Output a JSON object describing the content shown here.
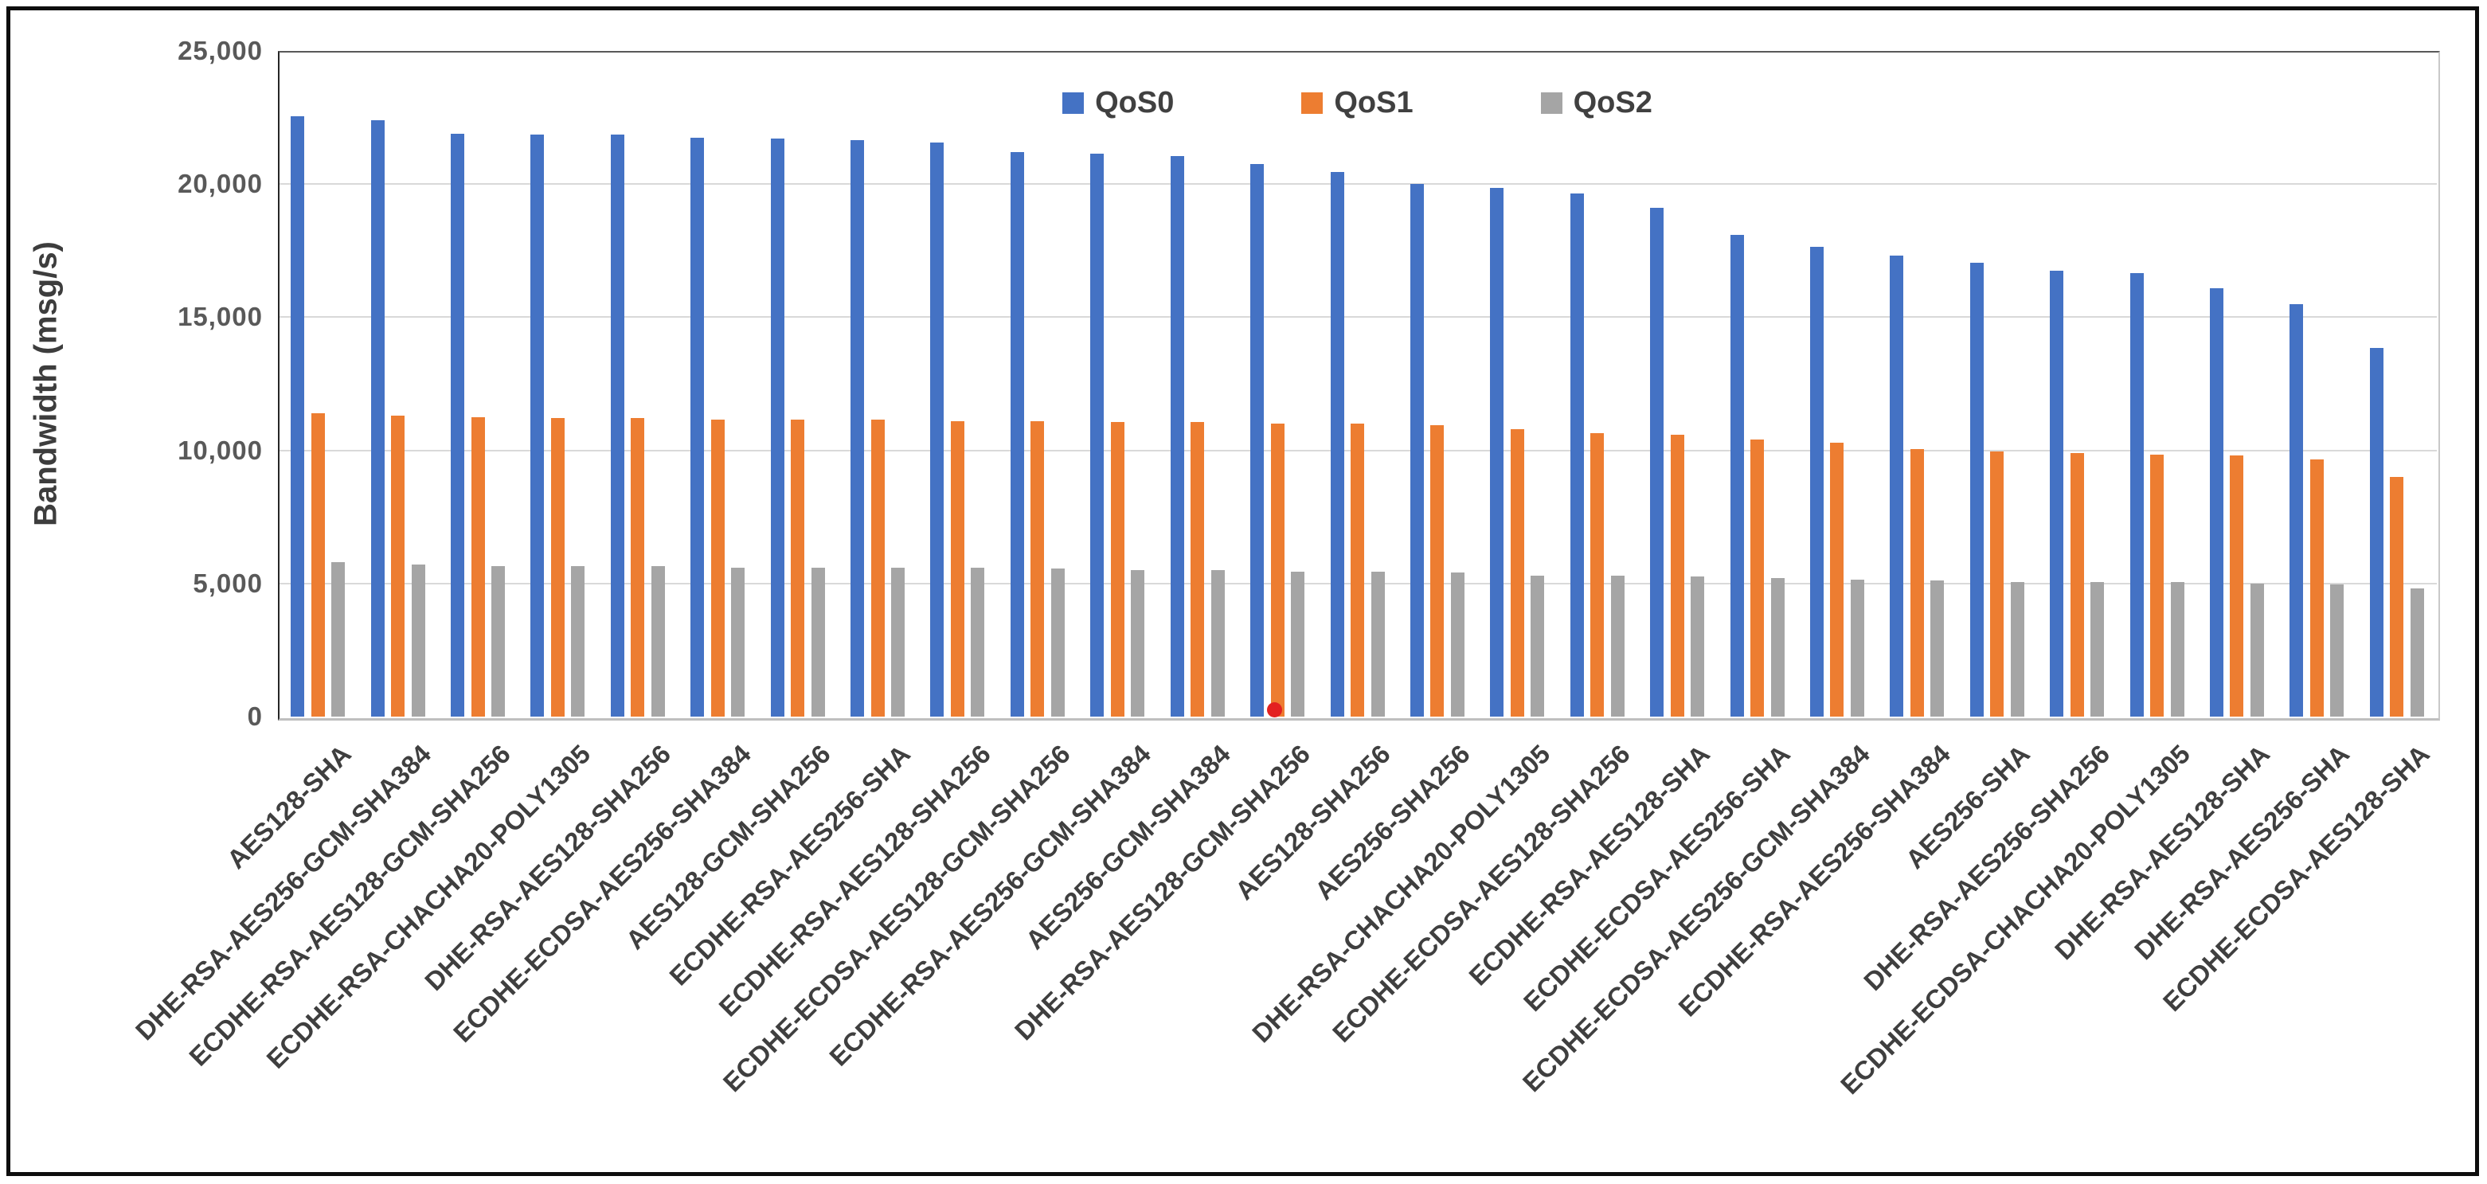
{
  "figure": {
    "background": "#ffffff",
    "border_color": "#0d0d0d"
  },
  "legend": {
    "items": [
      {
        "label": "QoS0",
        "color": "#4472C4"
      },
      {
        "label": "QoS1",
        "color": "#ED7D31"
      },
      {
        "label": "QoS2",
        "color": "#A5A5A5"
      }
    ]
  },
  "y_axis": {
    "title": "Bandwidth (msg/s)"
  },
  "chart_data": {
    "type": "bar",
    "title": "",
    "xlabel": "",
    "ylabel": "Bandwidth (msg/s)",
    "ylim": [
      0,
      25000
    ],
    "grid": true,
    "legend_position": "top-center",
    "gridline_color": "#d9d9d9",
    "yticks": [
      {
        "value": 0,
        "label": "0"
      },
      {
        "value": 5000,
        "label": "5,000"
      },
      {
        "value": 10000,
        "label": "10,000"
      },
      {
        "value": 15000,
        "label": "15,000"
      },
      {
        "value": 20000,
        "label": "20,000"
      },
      {
        "value": 25000,
        "label": "25,000"
      }
    ],
    "categories": [
      "AES128-SHA",
      "DHE-RSA-AES256-GCM-SHA384",
      "ECDHE-RSA-AES128-GCM-SHA256",
      "ECDHE-RSA-CHACHA20-POLY1305",
      "DHE-RSA-AES128-SHA256",
      "ECDHE-ECDSA-AES256-SHA384",
      "AES128-GCM-SHA256",
      "ECDHE-RSA-AES256-SHA",
      "ECDHE-RSA-AES128-SHA256",
      "ECDHE-ECDSA-AES128-GCM-SHA256",
      "ECDHE-RSA-AES256-GCM-SHA384",
      "AES256-GCM-SHA384",
      "DHE-RSA-AES128-GCM-SHA256",
      "AES128-SHA256",
      "AES256-SHA256",
      "DHE-RSA-CHACHA20-POLY1305",
      "ECDHE-ECDSA-AES128-SHA256",
      "ECDHE-RSA-AES128-SHA",
      "ECDHE-ECDSA-AES256-SHA",
      "ECDHE-ECDSA-AES256-GCM-SHA384",
      "ECDHE-RSA-AES256-SHA384",
      "AES256-SHA",
      "DHE-RSA-AES256-SHA256",
      "ECDHE-ECDSA-CHACHA20-POLY1305",
      "DHE-RSA-AES128-SHA",
      "DHE-RSA-AES256-SHA",
      "ECDHE-ECDSA-AES128-SHA"
    ],
    "series": [
      {
        "name": "QoS0",
        "color": "#4472C4",
        "values": [
          22550,
          22400,
          21900,
          21850,
          21850,
          21750,
          21700,
          21650,
          21550,
          21200,
          21150,
          21050,
          20750,
          20450,
          20000,
          19850,
          19650,
          19100,
          18100,
          17650,
          17300,
          17050,
          16750,
          16650,
          16100,
          15500,
          13850
        ]
      },
      {
        "name": "QoS1",
        "color": "#ED7D31",
        "values": [
          11400,
          11300,
          11250,
          11200,
          11200,
          11150,
          11150,
          11150,
          11100,
          11100,
          11050,
          11050,
          11000,
          11000,
          10950,
          10800,
          10650,
          10600,
          10400,
          10300,
          10050,
          9950,
          9900,
          9850,
          9800,
          9650,
          9000
        ]
      },
      {
        "name": "QoS2",
        "color": "#A5A5A5",
        "values": [
          5800,
          5700,
          5650,
          5650,
          5650,
          5600,
          5600,
          5600,
          5600,
          5550,
          5500,
          5500,
          5450,
          5450,
          5400,
          5300,
          5300,
          5250,
          5200,
          5150,
          5100,
          5050,
          5050,
          5050,
          5000,
          4950,
          4800
        ]
      }
    ],
    "annotations": [
      {
        "type": "dot",
        "color": "#E32121",
        "category_index": 12,
        "series": "QoS1",
        "value": 0,
        "description": "small red dot at baseline of DHE-RSA-AES128-GCM-SHA256 QoS1 bar"
      }
    ]
  }
}
